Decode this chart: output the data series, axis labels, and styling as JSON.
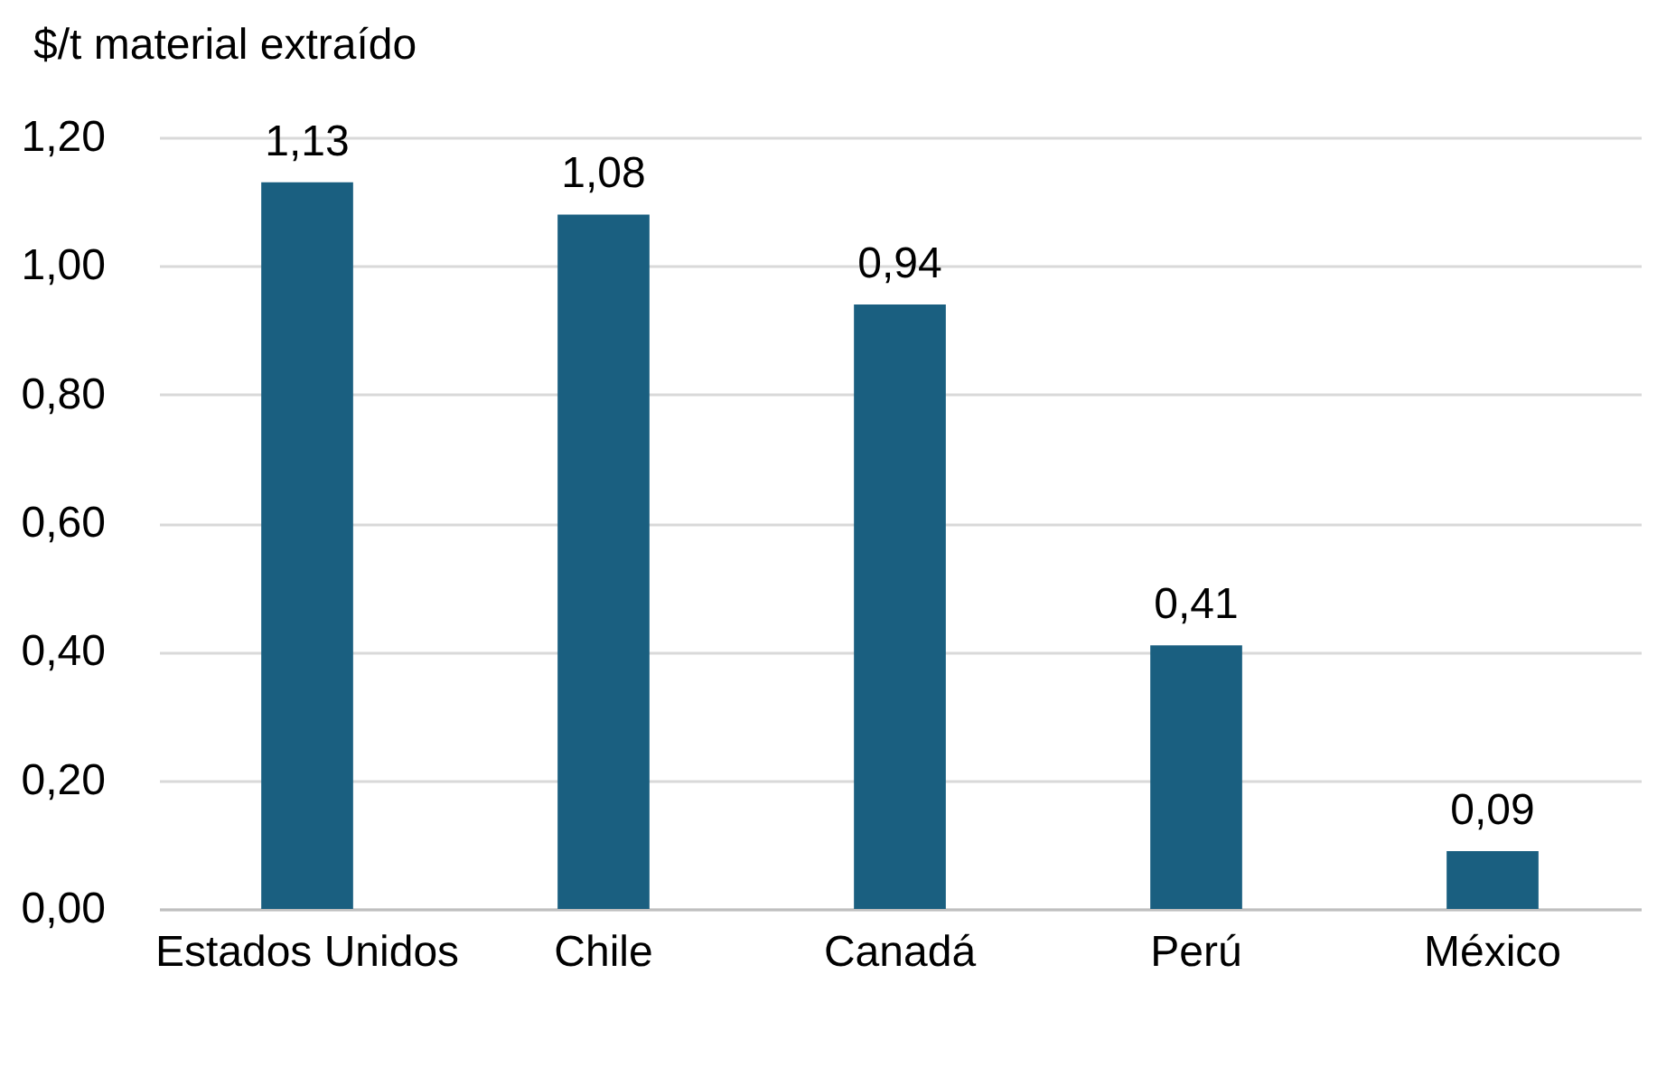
{
  "chart_data": {
    "type": "bar",
    "ylabel": "$/t material extraído",
    "categories": [
      "Estados Unidos",
      "Chile",
      "Canadá",
      "Perú",
      "México"
    ],
    "values": [
      1.13,
      1.08,
      0.94,
      0.41,
      0.09
    ],
    "value_labels": [
      "1,13",
      "1,08",
      "0,94",
      "0,41",
      "0,09"
    ],
    "color": "#1a5f80",
    "ylim": [
      0,
      1.2
    ],
    "yticks": [
      {
        "value": 0,
        "label": "0,00"
      },
      {
        "value": 0.2,
        "label": "0,20"
      },
      {
        "value": 0.4,
        "label": "0,40"
      },
      {
        "value": 0.6,
        "label": "0,60"
      },
      {
        "value": 0.8,
        "label": "0,80"
      },
      {
        "value": 1.0,
        "label": "1,00"
      },
      {
        "value": 1.2,
        "label": "1,20"
      }
    ],
    "grid": "y"
  }
}
